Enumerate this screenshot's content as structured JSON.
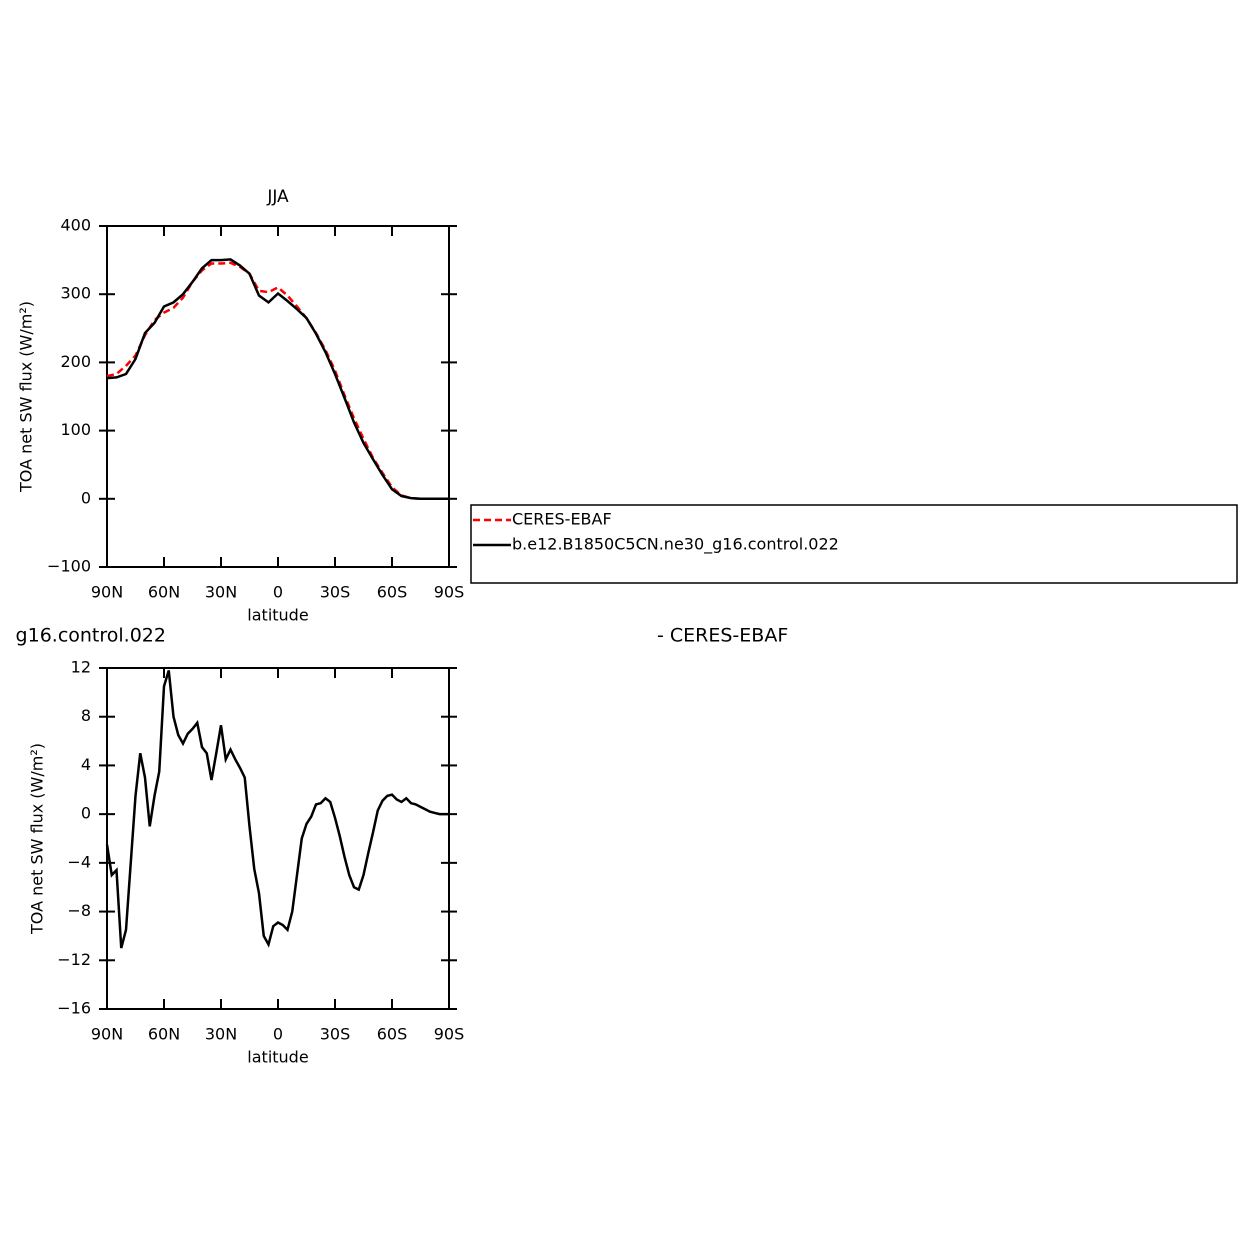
{
  "chart_data": [
    {
      "type": "line",
      "title": "JJA",
      "xlabel": "latitude",
      "ylabel": "TOA net SW flux (W/m²)",
      "x": [
        90,
        85,
        80,
        75,
        70,
        65,
        60,
        55,
        50,
        45,
        40,
        35,
        30,
        25,
        20,
        15,
        10,
        5,
        0,
        -5,
        -10,
        -15,
        -20,
        -25,
        -30,
        -35,
        -40,
        -45,
        -50,
        -55,
        -60,
        -65,
        -70,
        -75,
        -80,
        -85,
        -90
      ],
      "series": [
        {
          "name": "CERES-EBAF",
          "color": "#ff0000",
          "style": "dashed",
          "values": [
            180,
            183,
            195,
            210,
            240,
            262,
            273,
            280,
            295,
            318,
            335,
            345,
            345,
            346,
            340,
            330,
            305,
            303,
            310,
            298,
            282,
            265,
            243,
            218,
            188,
            152,
            118,
            88,
            60,
            38,
            17,
            5,
            1,
            0,
            0,
            0,
            0
          ]
        },
        {
          "name": "b.e12.B1850C5CN.ne30_g16.control.022",
          "color": "#000000",
          "style": "solid",
          "values": [
            177,
            178,
            183,
            205,
            243,
            258,
            282,
            288,
            300,
            318,
            338,
            350,
            350,
            351,
            342,
            330,
            298,
            288,
            301,
            290,
            278,
            265,
            242,
            215,
            183,
            148,
            112,
            82,
            58,
            35,
            14,
            4,
            1,
            0,
            0,
            0,
            0
          ]
        }
      ],
      "xlim": [
        90,
        -90
      ],
      "xticks": [
        {
          "value": 90,
          "label": "90N"
        },
        {
          "value": 60,
          "label": "60N"
        },
        {
          "value": 30,
          "label": "30N"
        },
        0,
        {
          "value": -30,
          "label": "30S"
        },
        {
          "value": -60,
          "label": "60S"
        },
        {
          "value": -90,
          "label": "90S"
        }
      ],
      "ylim": [
        -100,
        400
      ],
      "yticks": [
        {
          "value": -100,
          "label": "−100"
        },
        0,
        100,
        200,
        300,
        400
      ],
      "legend": "right"
    },
    {
      "type": "line",
      "title_left": "g16.control.022",
      "title_right": "- CERES-EBAF",
      "xlabel": "latitude",
      "ylabel": "TOA net SW flux (W/m²)",
      "x": [
        90,
        87.5,
        85,
        82.5,
        80,
        77.5,
        75,
        72.5,
        70,
        67.5,
        65,
        62.5,
        60,
        57.5,
        55,
        52.5,
        50,
        47.5,
        45,
        42.5,
        40,
        37.5,
        35,
        32.5,
        30,
        27.5,
        25,
        22.5,
        20,
        17.5,
        15,
        12.5,
        10,
        7.5,
        5,
        2.5,
        0,
        -2.5,
        -5,
        -7.5,
        -10,
        -12.5,
        -15,
        -17.5,
        -20,
        -22.5,
        -25,
        -27.5,
        -30,
        -32.5,
        -35,
        -37.5,
        -40,
        -42.5,
        -45,
        -47.5,
        -50,
        -52.5,
        -55,
        -57.5,
        -60,
        -62.5,
        -65,
        -67.5,
        -70,
        -72.5,
        -75,
        -77.5,
        -80,
        -82.5,
        -85,
        -87.5,
        -90
      ],
      "values": [
        -2.5,
        -5,
        -4.6,
        -11,
        -9.5,
        -4,
        1.5,
        5,
        3,
        -1,
        1.5,
        3.5,
        10.5,
        11.8,
        8,
        6.5,
        5.8,
        6.6,
        7,
        7.5,
        5.5,
        5,
        2.8,
        5,
        7.3,
        4.5,
        5.3,
        4.5,
        3.8,
        3,
        -1,
        -4.5,
        -6.5,
        -10,
        -10.7,
        -9.2,
        -8.9,
        -9.1,
        -9.5,
        -8,
        -5,
        -2,
        -0.8,
        -0.2,
        0.8,
        0.9,
        1.3,
        1,
        -0.3,
        -1.8,
        -3.5,
        -5,
        -6,
        -6.2,
        -5,
        -3.2,
        -1.5,
        0.3,
        1.1,
        1.5,
        1.6,
        1.2,
        1,
        1.3,
        0.9,
        0.8,
        0.6,
        0.4,
        0.2,
        0.1,
        0,
        0,
        0
      ],
      "color": "#000000",
      "xlim": [
        90,
        -90
      ],
      "xticks": [
        {
          "value": 90,
          "label": "90N"
        },
        {
          "value": 60,
          "label": "60N"
        },
        {
          "value": 30,
          "label": "30N"
        },
        0,
        {
          "value": -30,
          "label": "30S"
        },
        {
          "value": -60,
          "label": "60S"
        },
        {
          "value": -90,
          "label": "90S"
        }
      ],
      "ylim": [
        -16,
        12
      ],
      "yticks": [
        {
          "value": -16,
          "label": "−16"
        },
        {
          "value": -12,
          "label": "−12"
        },
        {
          "value": -8,
          "label": "−8"
        },
        {
          "value": -4,
          "label": "−4"
        },
        0,
        4,
        8,
        12
      ]
    }
  ]
}
